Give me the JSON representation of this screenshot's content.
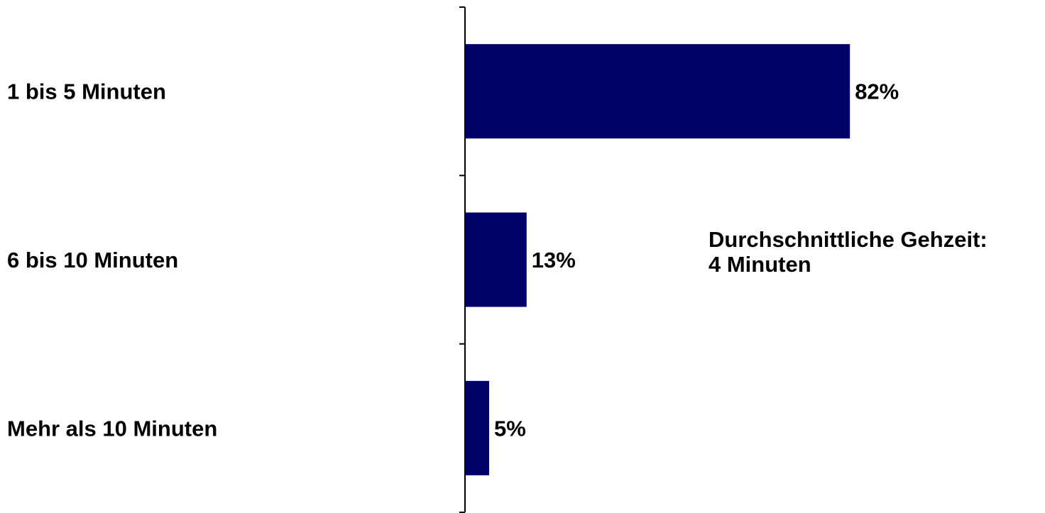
{
  "chart_data": {
    "type": "bar",
    "orientation": "horizontal",
    "categories": [
      "1 bis 5 Minuten",
      "6 bis 10 Minuten",
      "Mehr als 10 Minuten"
    ],
    "values": [
      82,
      13,
      5
    ],
    "value_labels": [
      "82%",
      "13%",
      "5%"
    ],
    "unit": "%",
    "xlim": [
      0,
      100
    ],
    "bar_color": "#000066",
    "grid": false,
    "legend": "none",
    "annotation": {
      "line1": "Durchschnittliche Gehzeit:",
      "line2": "4 Minuten"
    }
  }
}
